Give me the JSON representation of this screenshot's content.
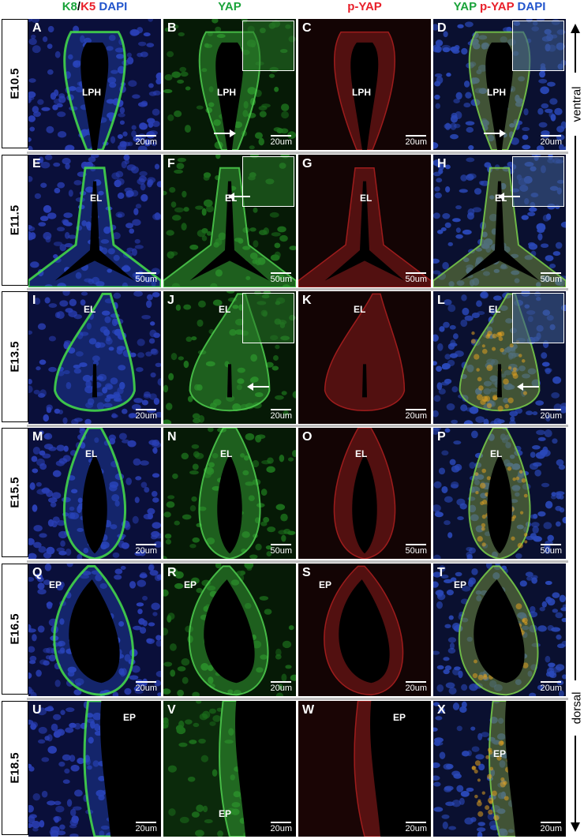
{
  "colors": {
    "green": "#1aa33a",
    "red": "#e8202a",
    "blue": "#2255cc",
    "inset_border": "#ffffff"
  },
  "headers": [
    {
      "parts": [
        {
          "text": "K8",
          "color": "#1aa33a"
        },
        {
          "text": "/",
          "color": "#000000"
        },
        {
          "text": "K5",
          "color": "#e8202a"
        },
        {
          "text": " DAPI",
          "color": "#2255cc"
        }
      ]
    },
    {
      "parts": [
        {
          "text": "YAP",
          "color": "#1aa33a"
        }
      ]
    },
    {
      "parts": [
        {
          "text": "p-YAP",
          "color": "#e8202a"
        }
      ]
    },
    {
      "parts": [
        {
          "text": "YAP",
          "color": "#1aa33a"
        },
        {
          "text": " p-YAP",
          "color": "#e8202a"
        },
        {
          "text": " DAPI",
          "color": "#2255cc"
        }
      ]
    }
  ],
  "axis": {
    "top_label": "ventral",
    "bottom_label": "dorsal"
  },
  "rows": [
    {
      "stage": "E10.5",
      "panels": [
        {
          "letter": "A",
          "region": "LPH",
          "scale": "20um",
          "stain": "k8"
        },
        {
          "letter": "B",
          "region": "LPH",
          "scale": "20um",
          "stain": "yap",
          "inset": true,
          "arrow": "right"
        },
        {
          "letter": "C",
          "region": "LPH",
          "scale": "20um",
          "stain": "pyap"
        },
        {
          "letter": "D",
          "region": "LPH",
          "scale": "20um",
          "stain": "merge",
          "inset": true,
          "arrow": "right"
        }
      ]
    },
    {
      "stage": "E11.5",
      "panels": [
        {
          "letter": "E",
          "region": "EL",
          "scale": "50um",
          "stain": "k8"
        },
        {
          "letter": "F",
          "region": "EL",
          "scale": "50um",
          "stain": "yap",
          "inset": true,
          "arrow": "left"
        },
        {
          "letter": "G",
          "region": "EL",
          "scale": "50um",
          "stain": "pyap"
        },
        {
          "letter": "H",
          "region": "EL",
          "scale": "50um",
          "stain": "merge",
          "inset": true,
          "arrow": "left"
        }
      ]
    },
    {
      "stage": "E13.5",
      "panels": [
        {
          "letter": "I",
          "region": "EL",
          "scale": "20um",
          "stain": "k8"
        },
        {
          "letter": "J",
          "region": "EL",
          "scale": "20um",
          "stain": "yap",
          "inset": true,
          "arrow": "left"
        },
        {
          "letter": "K",
          "region": "EL",
          "scale": "20um",
          "stain": "pyap"
        },
        {
          "letter": "L",
          "region": "EL",
          "scale": "20um",
          "stain": "merge",
          "inset": true,
          "arrow": "left"
        }
      ]
    },
    {
      "stage": "E15.5",
      "panels": [
        {
          "letter": "M",
          "region": "EL",
          "scale": "20um",
          "stain": "k8"
        },
        {
          "letter": "N",
          "region": "EL",
          "scale": "50um",
          "stain": "yap"
        },
        {
          "letter": "O",
          "region": "EL",
          "scale": "50um",
          "stain": "pyap"
        },
        {
          "letter": "P",
          "region": "EL",
          "scale": "50um",
          "stain": "merge"
        }
      ]
    },
    {
      "stage": "E16.5",
      "panels": [
        {
          "letter": "Q",
          "region": "EP",
          "scale": "20um",
          "stain": "k8"
        },
        {
          "letter": "R",
          "region": "EP",
          "scale": "20um",
          "stain": "yap"
        },
        {
          "letter": "S",
          "region": "EP",
          "scale": "20um",
          "stain": "pyap"
        },
        {
          "letter": "T",
          "region": "EP",
          "scale": "20um",
          "stain": "merge"
        }
      ]
    },
    {
      "stage": "E18.5",
      "panels": [
        {
          "letter": "U",
          "region": "EP",
          "scale": "20um",
          "stain": "k8"
        },
        {
          "letter": "V",
          "region": "EP",
          "scale": "20um",
          "stain": "yap"
        },
        {
          "letter": "W",
          "region": "EP",
          "scale": "20um",
          "stain": "pyap"
        },
        {
          "letter": "X",
          "region": "EP",
          "scale": "20um",
          "stain": "merge"
        }
      ]
    }
  ]
}
